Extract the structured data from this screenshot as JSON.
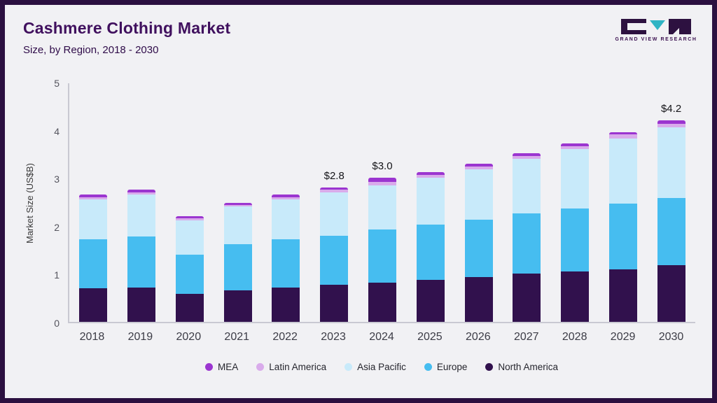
{
  "page": {
    "title": "Cashmere Clothing Market",
    "subtitle": "Size, by Region, 2018 - 2030",
    "logo_text": "GRAND VIEW RESEARCH"
  },
  "brand_colors": {
    "frame_border": "#2b1040",
    "title": "#40105e",
    "logo_dark": "#2d1140",
    "logo_teal": "#2fb4c4"
  },
  "chart_data": {
    "type": "bar",
    "stacked": true,
    "title": "Cashmere Clothing Market",
    "subtitle": "Size, by Region, 2018 - 2030",
    "xlabel": "",
    "ylabel": "Market Size (US$B)",
    "ylim": [
      0,
      5
    ],
    "yticks": [
      0,
      1,
      2,
      3,
      4,
      5
    ],
    "grid": false,
    "legend_position": "bottom",
    "categories": [
      "2018",
      "2019",
      "2020",
      "2021",
      "2022",
      "2023",
      "2024",
      "2025",
      "2026",
      "2027",
      "2028",
      "2029",
      "2030"
    ],
    "series": [
      {
        "name": "North America",
        "color": "#31114d",
        "values": [
          0.7,
          0.72,
          0.58,
          0.66,
          0.72,
          0.77,
          0.82,
          0.87,
          0.93,
          1.0,
          1.05,
          1.1,
          1.18
        ]
      },
      {
        "name": "Europe",
        "color": "#46bdf0",
        "values": [
          1.02,
          1.06,
          0.82,
          0.96,
          1.0,
          1.03,
          1.1,
          1.15,
          1.2,
          1.26,
          1.31,
          1.37,
          1.4
        ]
      },
      {
        "name": "Asia Pacific",
        "color": "#c8eafa",
        "values": [
          0.83,
          0.87,
          0.72,
          0.78,
          0.83,
          0.9,
          0.93,
          0.98,
          1.05,
          1.14,
          1.24,
          1.35,
          1.47
        ]
      },
      {
        "name": "Latin America",
        "color": "#d9abeb",
        "values": [
          0.05,
          0.05,
          0.04,
          0.04,
          0.05,
          0.05,
          0.07,
          0.06,
          0.06,
          0.06,
          0.06,
          0.08,
          0.08
        ]
      },
      {
        "name": "MEA",
        "color": "#9b35d0",
        "values": [
          0.05,
          0.05,
          0.04,
          0.04,
          0.05,
          0.05,
          0.08,
          0.06,
          0.06,
          0.06,
          0.06,
          0.05,
          0.07
        ]
      }
    ],
    "totals": [
      2.65,
      2.75,
      2.2,
      2.48,
      2.65,
      2.8,
      3.0,
      3.12,
      3.3,
      3.52,
      3.72,
      3.95,
      4.2
    ],
    "annotations": [
      {
        "category": "2023",
        "label": "$2.8"
      },
      {
        "category": "2024",
        "label": "$3.0"
      },
      {
        "category": "2030",
        "label": "$4.2"
      }
    ],
    "legend": [
      "MEA",
      "Latin America",
      "Asia Pacific",
      "Europe",
      "North America"
    ]
  }
}
